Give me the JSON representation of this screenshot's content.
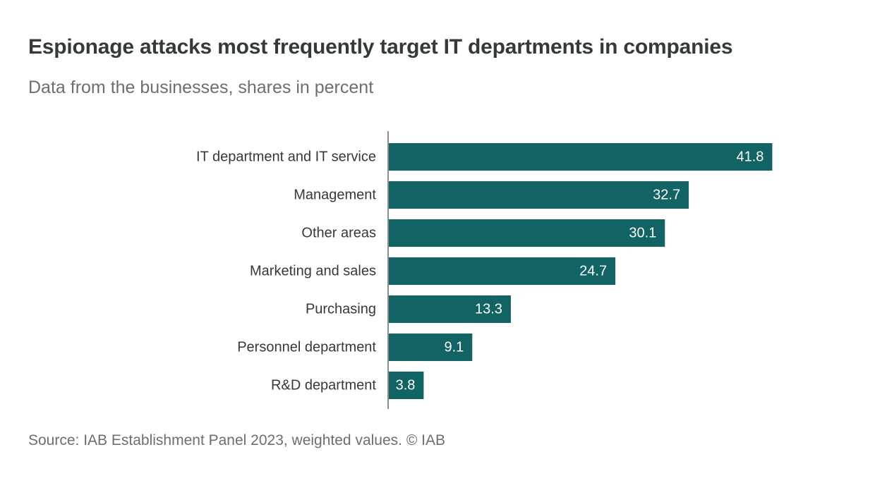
{
  "header": {
    "title": "Espionage attacks most frequently target IT departments in companies",
    "subtitle": "Data from the businesses, shares in percent"
  },
  "footer": {
    "source": "Source: IAB Establishment Panel 2023, weighted values. © IAB"
  },
  "colors": {
    "bar": "#116463",
    "axis": "#8a8f8d"
  },
  "chart_data": {
    "type": "bar",
    "orientation": "horizontal",
    "title": "Espionage attacks most frequently target IT departments in companies",
    "subtitle": "Data from the businesses, shares in percent",
    "categories": [
      "IT department and IT service",
      "Management",
      "Other areas",
      "Marketing and sales",
      "Purchasing",
      "Personnel department",
      "R&D department"
    ],
    "values": [
      41.8,
      32.7,
      30.1,
      24.7,
      13.3,
      9.1,
      3.8
    ],
    "value_labels": [
      "41.8",
      "32.7",
      "30.1",
      "24.7",
      "13.3",
      "9.1",
      "3.8"
    ],
    "xlim": [
      0,
      45
    ],
    "grid": false,
    "legend": "none"
  }
}
